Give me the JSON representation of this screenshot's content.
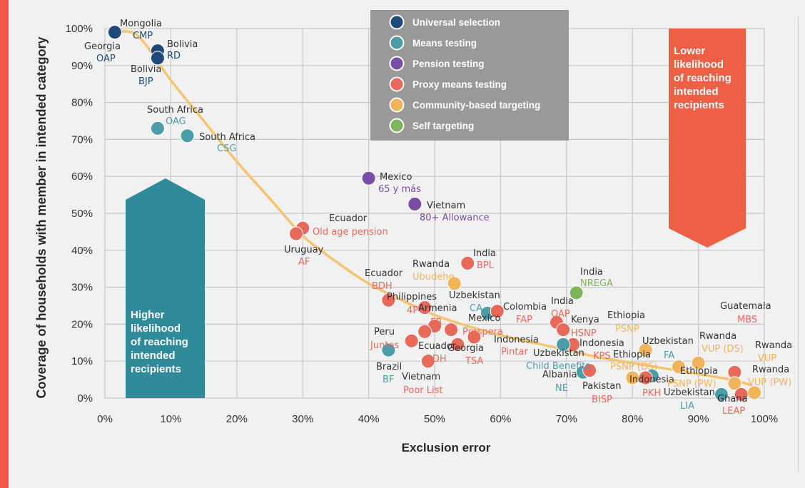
{
  "chart_data": {
    "type": "scatter",
    "xlabel": "Exclusion error",
    "ylabel": "Coverage of households with member in intended category",
    "xlim": [
      0,
      100
    ],
    "ylim": [
      0,
      100
    ],
    "x_ticks": [
      "0%",
      "10%",
      "20%",
      "30%",
      "40%",
      "50%",
      "60%",
      "70%",
      "80%",
      "90%",
      "100%"
    ],
    "y_ticks": [
      "0%",
      "10%",
      "20%",
      "30%",
      "40%",
      "50%",
      "60%",
      "70%",
      "80%",
      "90%",
      "100%"
    ],
    "grid": true,
    "legend_position": "top-center",
    "trend_curve": [
      [
        1.5,
        99
      ],
      [
        5,
        98
      ],
      [
        10,
        86
      ],
      [
        15,
        75
      ],
      [
        20,
        64
      ],
      [
        25,
        54
      ],
      [
        30,
        44
      ],
      [
        35,
        37
      ],
      [
        40,
        31
      ],
      [
        45,
        26.5
      ],
      [
        50,
        22.5
      ],
      [
        55,
        19.5
      ],
      [
        60,
        17
      ],
      [
        65,
        15
      ],
      [
        70,
        13
      ],
      [
        75,
        11
      ],
      [
        80,
        9.5
      ],
      [
        85,
        8
      ],
      [
        90,
        6.5
      ],
      [
        95,
        5
      ],
      [
        98,
        3.5
      ]
    ],
    "categories": [
      {
        "key": "US",
        "name": "Universal selection",
        "color": "#1e4a7a"
      },
      {
        "key": "MT",
        "name": "Means testing",
        "color": "#4b9ea8"
      },
      {
        "key": "PT",
        "name": "Pension testing",
        "color": "#7a4ea5"
      },
      {
        "key": "PMT",
        "name": "Proxy means testing",
        "color": "#e8685a"
      },
      {
        "key": "CBT",
        "name": "Community-based targeting",
        "color": "#f2b45a"
      },
      {
        "key": "ST",
        "name": "Self targeting",
        "color": "#7fb55a"
      }
    ],
    "points": [
      {
        "country": "Mongolia",
        "program": "CMP",
        "x": 1.5,
        "y": 99,
        "cat": "US"
      },
      {
        "country": "Georgia",
        "program": "OAP",
        "x": 1.5,
        "y": 99,
        "cat": "US"
      },
      {
        "country": "Bolivia",
        "program": "RD",
        "x": 8,
        "y": 94,
        "cat": "US"
      },
      {
        "country": "Bolivia",
        "program": "BJP",
        "x": 8,
        "y": 92,
        "cat": "US"
      },
      {
        "country": "South Africa",
        "program": "OAG",
        "x": 8,
        "y": 73,
        "cat": "MT"
      },
      {
        "country": "South Africa",
        "program": "CSG",
        "x": 12.5,
        "y": 71,
        "cat": "MT"
      },
      {
        "country": "Mexico",
        "program": "65 y más",
        "x": 40,
        "y": 59.5,
        "cat": "PT"
      },
      {
        "country": "Vietnam",
        "program": "80+ Allowance",
        "x": 47,
        "y": 52.5,
        "cat": "PT"
      },
      {
        "country": "Ecuador",
        "program": "Old age pension",
        "x": 30,
        "y": 46,
        "cat": "PMT"
      },
      {
        "country": "Uruguay",
        "program": "AF",
        "x": 29,
        "y": 44.5,
        "cat": "PMT"
      },
      {
        "country": "India",
        "program": "BPL",
        "x": 55,
        "y": 36.5,
        "cat": "PMT"
      },
      {
        "country": "Rwanda",
        "program": "Ubudehe",
        "x": 53,
        "y": 31,
        "cat": "CBT"
      },
      {
        "country": "India",
        "program": "NREGA",
        "x": 71.5,
        "y": 28.5,
        "cat": "ST"
      },
      {
        "country": "Ecuador",
        "program": "BDH",
        "x": 43,
        "y": 26.5,
        "cat": "PMT"
      },
      {
        "country": "Philippines",
        "program": "4P",
        "x": 48.5,
        "y": 24.5,
        "cat": "PMT"
      },
      {
        "country": "Uzbekistan",
        "program": "CA",
        "x": 58,
        "y": 23,
        "cat": "MT"
      },
      {
        "country": "Colombia",
        "program": "FAP",
        "x": 59.5,
        "y": 23.5,
        "cat": "PMT"
      },
      {
        "country": "Armenia",
        "program": "FB",
        "x": 50,
        "y": 19.5,
        "cat": "PMT"
      },
      {
        "country": "Mexico",
        "program": "Prospera",
        "x": 52.5,
        "y": 18.5,
        "cat": "PMT"
      },
      {
        "country": "India",
        "program": "OAP",
        "x": 68.5,
        "y": 20.5,
        "cat": "PMT"
      },
      {
        "country": "Kenya",
        "program": "HSNP",
        "x": 69.5,
        "y": 18.5,
        "cat": "PMT"
      },
      {
        "country": "Ethiopia",
        "program": "PSNP",
        "x": 82,
        "y": 13,
        "cat": "CBT"
      },
      {
        "country": "Guatemala",
        "program": "MBS",
        "x": 95.5,
        "y": 7,
        "cat": "PMT"
      },
      {
        "country": "Peru",
        "program": "Juntos",
        "x": 48.5,
        "y": 18,
        "cat": "PMT"
      },
      {
        "country": "Indonesia",
        "program": "Pintar",
        "x": 56,
        "y": 16.5,
        "cat": "PMT"
      },
      {
        "country": "Ecuador",
        "program": "BDH",
        "x": 46.5,
        "y": 15.5,
        "cat": "PMT"
      },
      {
        "country": "Georgia",
        "program": "TSA",
        "x": 53.5,
        "y": 14.5,
        "cat": "PMT"
      },
      {
        "country": "Indonesia",
        "program": "KPS",
        "x": 71,
        "y": 14.5,
        "cat": "PMT"
      },
      {
        "country": "Uzbekistan",
        "program": "FA",
        "x": 83,
        "y": 6,
        "cat": "MT"
      },
      {
        "country": "Rwanda",
        "program": "VUP (DS)",
        "x": 90,
        "y": 9.5,
        "cat": "CBT"
      },
      {
        "country": "Rwanda",
        "program": "VUP",
        "x": 95.5,
        "y": 4,
        "cat": "CBT"
      },
      {
        "country": "Brazil",
        "program": "BF",
        "x": 43,
        "y": 13,
        "cat": "MT"
      },
      {
        "country": "Uzbekistan",
        "program": "Child Benefits",
        "x": 69.5,
        "y": 14.5,
        "cat": "MT"
      },
      {
        "country": "Ethiopia",
        "program": "PSNP (DS)",
        "x": 87,
        "y": 8.5,
        "cat": "CBT"
      },
      {
        "country": "Albania",
        "program": "NE",
        "x": 72.5,
        "y": 7,
        "cat": "MT"
      },
      {
        "country": "Pakistan",
        "program": "BISP",
        "x": 73.5,
        "y": 7.5,
        "cat": "PMT"
      },
      {
        "country": "Indonesia",
        "program": "PKH",
        "x": 82,
        "y": 5.5,
        "cat": "PMT"
      },
      {
        "country": "Ethiopia",
        "program": "PSNP (PW)",
        "x": 80,
        "y": 5.5,
        "cat": "CBT"
      },
      {
        "country": "Vietnam",
        "program": "Poor List",
        "x": 49,
        "y": 10,
        "cat": "PMT"
      },
      {
        "country": "Uzbekistan",
        "program": "LIA",
        "x": 93.5,
        "y": 1,
        "cat": "MT"
      },
      {
        "country": "Ghana",
        "program": "LEAP",
        "x": 96.5,
        "y": 1,
        "cat": "PMT"
      },
      {
        "country": "Rwanda",
        "program": "VUP (PW)",
        "x": 98.5,
        "y": 1.5,
        "cat": "CBT"
      }
    ]
  },
  "arrows": {
    "left_label": [
      "Higher",
      "likelihood",
      "of reaching",
      "intended",
      "recipients"
    ],
    "right_label": [
      "Lower",
      "likelihood",
      "of reaching",
      "intended",
      "recipients"
    ],
    "left_color": "#2f8a9a",
    "right_color": "#ee5f45"
  },
  "colors": {
    "accent_bar": "#f05a45",
    "legend_bg": "#999999",
    "trend_line": "#f5c46f",
    "grid": "#c8c8c8"
  }
}
